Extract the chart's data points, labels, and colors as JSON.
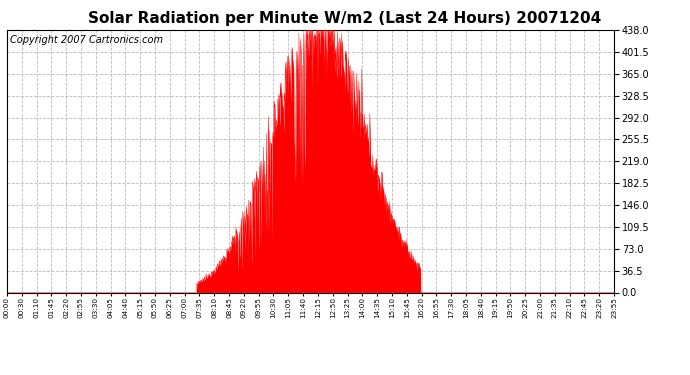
{
  "title": "Solar Radiation per Minute W/m2 (Last 24 Hours) 20071204",
  "copyright": "Copyright 2007 Cartronics.com",
  "y_ticks": [
    0.0,
    36.5,
    73.0,
    109.5,
    146.0,
    182.5,
    219.0,
    255.5,
    292.0,
    328.5,
    365.0,
    401.5,
    438.0
  ],
  "y_max": 438.0,
  "y_min": 0.0,
  "fill_color": "#ff0000",
  "line_color": "#ff0000",
  "bg_color": "#ffffff",
  "grid_color": "#bbbbbb",
  "title_fontsize": 11,
  "copyright_fontsize": 7,
  "x_labels": [
    "00:00",
    "00:30",
    "01:10",
    "01:45",
    "02:20",
    "02:55",
    "03:30",
    "04:05",
    "04:40",
    "05:15",
    "05:50",
    "06:25",
    "07:00",
    "07:35",
    "08:10",
    "08:45",
    "09:20",
    "09:55",
    "10:30",
    "11:05",
    "11:40",
    "12:15",
    "12:50",
    "13:25",
    "14:00",
    "14:35",
    "15:10",
    "15:45",
    "16:20",
    "16:55",
    "17:30",
    "18:05",
    "18:40",
    "19:15",
    "19:50",
    "20:25",
    "21:00",
    "21:35",
    "22:10",
    "22:45",
    "23:20",
    "23:55"
  ],
  "rise_hour": 7.5,
  "set_hour": 16.35,
  "solar_noon": 12.3,
  "peak_value": 438.0,
  "sigma": 1.85
}
